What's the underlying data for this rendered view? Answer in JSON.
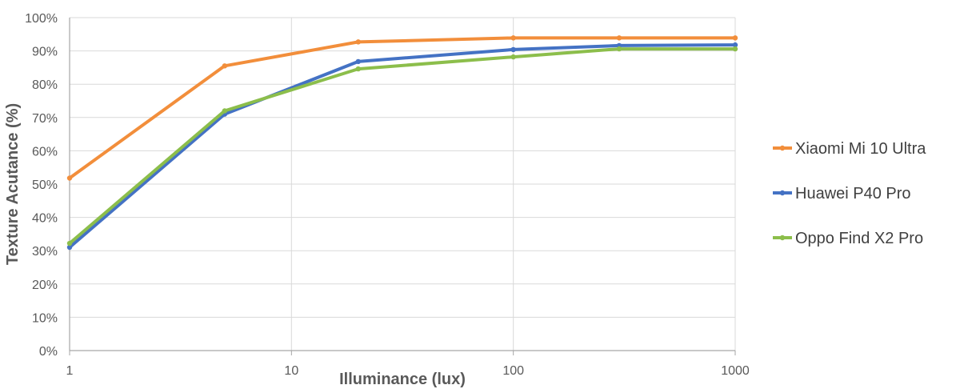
{
  "chart_data": {
    "type": "line",
    "title": "",
    "xlabel": "Illuminance (lux)",
    "ylabel": "Texture Acutance (%)",
    "x_scale": "log",
    "xlim": [
      1,
      1000
    ],
    "ylim": [
      0,
      100
    ],
    "x_ticks": [
      1,
      10,
      100,
      1000
    ],
    "x_tick_labels": [
      "1",
      "10",
      "100",
      "1000"
    ],
    "y_ticks": [
      0,
      10,
      20,
      30,
      40,
      50,
      60,
      70,
      80,
      90,
      100
    ],
    "y_tick_labels": [
      "0%",
      "10%",
      "20%",
      "30%",
      "40%",
      "50%",
      "60%",
      "70%",
      "80%",
      "90%",
      "100%"
    ],
    "grid": true,
    "legend_position": "right",
    "x": [
      1,
      5,
      20,
      100,
      300,
      1000
    ],
    "series": [
      {
        "name": "Xiaomi Mi 10 Ultra",
        "color": "#F28E3B",
        "values": [
          51.8,
          85.5,
          92.7,
          93.9,
          93.9,
          93.9
        ]
      },
      {
        "name": "Huawei P40 Pro",
        "color": "#4472C4",
        "values": [
          31.0,
          71.0,
          86.8,
          90.4,
          91.6,
          91.8
        ]
      },
      {
        "name": "Oppo Find X2 Pro",
        "color": "#8CBE4B",
        "values": [
          32.2,
          72.0,
          84.6,
          88.2,
          90.6,
          90.6
        ]
      }
    ]
  }
}
